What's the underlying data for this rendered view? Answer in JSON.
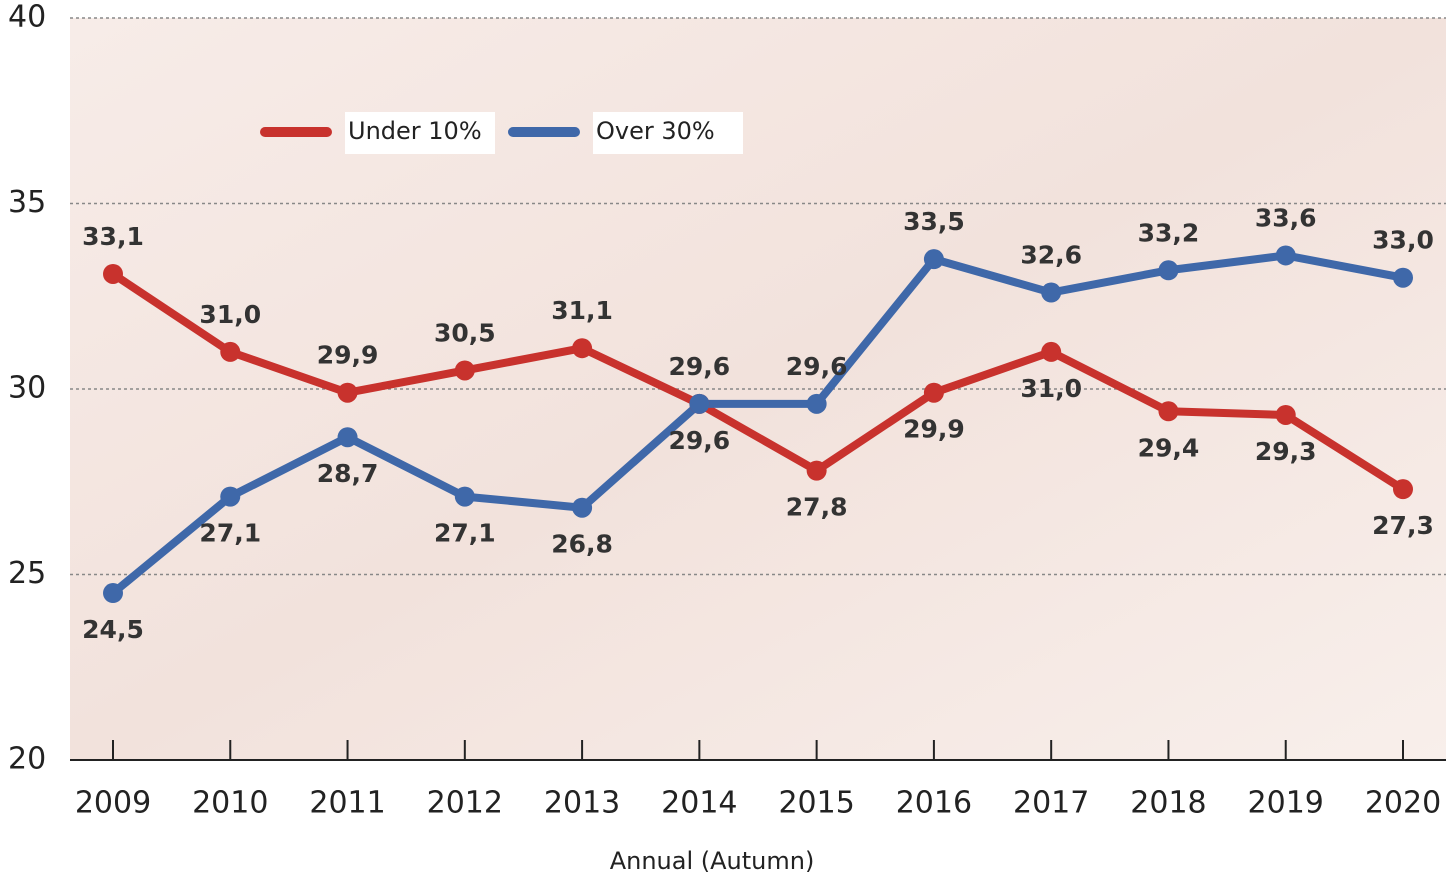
{
  "chart_data": {
    "type": "line",
    "x_label": "Annual (Autumn)",
    "categories": [
      "2009",
      "2010",
      "2011",
      "2012",
      "2013",
      "2014",
      "2015",
      "2016",
      "2017",
      "2018",
      "2019",
      "2020"
    ],
    "series": [
      {
        "name": "Under 10%",
        "color": "#c8322d",
        "values": [
          33.1,
          31.0,
          29.9,
          30.5,
          31.1,
          29.6,
          27.8,
          29.9,
          31.0,
          29.4,
          29.3,
          27.3
        ],
        "value_labels": [
          "33,1",
          "31,0",
          "29,9",
          "30,5",
          "31,1",
          "29,6",
          "27,8",
          "29,9",
          "31,0",
          "29,4",
          "29,3",
          "27,3"
        ]
      },
      {
        "name": "Over 30%",
        "color": "#3f68a9",
        "values": [
          24.5,
          27.1,
          28.7,
          27.1,
          26.8,
          29.6,
          29.6,
          33.5,
          32.6,
          33.2,
          33.6,
          33.0
        ],
        "value_labels": [
          "24,5",
          "27,1",
          "28,7",
          "27,1",
          "26,8",
          "29,6",
          "29,6",
          "33,5",
          "32,6",
          "33,2",
          "33,6",
          "33,0"
        ]
      }
    ],
    "ylim": [
      20,
      40
    ],
    "yticks": [
      20,
      25,
      30,
      35,
      40
    ],
    "grid": true,
    "legend": "top-left"
  }
}
